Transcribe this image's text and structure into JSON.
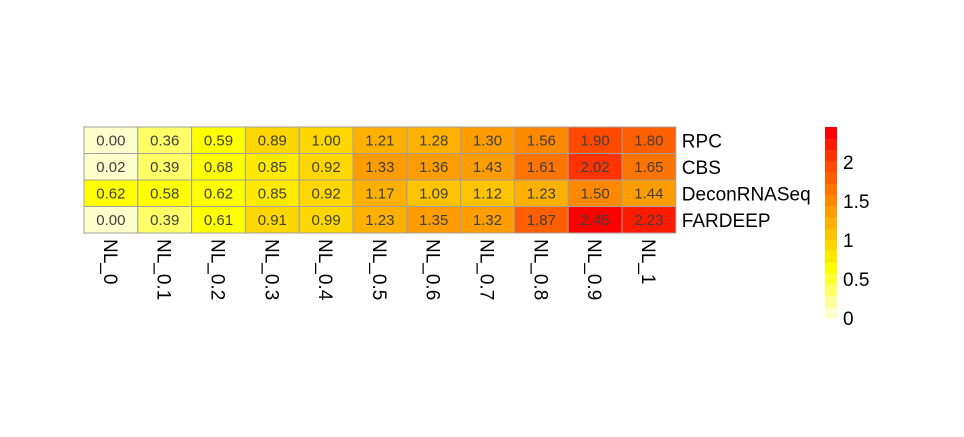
{
  "chart_data": {
    "type": "heatmap",
    "title": "",
    "xlabel": "",
    "ylabel": "",
    "rows": [
      "RPC",
      "CBS",
      "DeconRNASeq",
      "FARDEEP"
    ],
    "columns": [
      "NL_0",
      "NL_0.1",
      "NL_0.2",
      "NL_0.3",
      "NL_0.4",
      "NL_0.5",
      "NL_0.6",
      "NL_0.7",
      "NL_0.8",
      "NL_0.9",
      "NL_1"
    ],
    "values": [
      [
        0.0,
        0.36,
        0.59,
        0.89,
        1.0,
        1.21,
        1.28,
        1.3,
        1.56,
        1.9,
        1.8
      ],
      [
        0.02,
        0.39,
        0.68,
        0.85,
        0.92,
        1.33,
        1.36,
        1.43,
        1.61,
        2.02,
        1.65
      ],
      [
        0.62,
        0.58,
        0.62,
        0.85,
        0.92,
        1.17,
        1.09,
        1.12,
        1.23,
        1.5,
        1.44
      ],
      [
        0.0,
        0.39,
        0.61,
        0.91,
        0.99,
        1.23,
        1.35,
        1.32,
        1.87,
        2.45,
        2.23
      ]
    ],
    "cell_labels": [
      [
        "0.00",
        "0.36",
        "0.59",
        "0.89",
        "1.00",
        "1.21",
        "1.28",
        "1.30",
        "1.56",
        "1.90",
        "1.80"
      ],
      [
        "0.02",
        "0.39",
        "0.68",
        "0.85",
        "0.92",
        "1.33",
        "1.36",
        "1.43",
        "1.61",
        "2.02",
        "1.65"
      ],
      [
        "0.62",
        "0.58",
        "0.62",
        "0.85",
        "0.92",
        "1.17",
        "1.09",
        "1.12",
        "1.23",
        "1.50",
        "1.44"
      ],
      [
        "0.00",
        "0.39",
        "0.61",
        "0.91",
        "0.99",
        "1.23",
        "1.35",
        "1.32",
        "1.87",
        "2.45",
        "2.23"
      ]
    ],
    "legend": {
      "placement": "right",
      "ticks": [
        0,
        0.5,
        1,
        1.5,
        2
      ],
      "tick_labels": [
        "0",
        "0.5",
        "1",
        "1.5",
        "2"
      ],
      "range": [
        0,
        2.45
      ]
    },
    "colors": {
      "palette": [
        "#FFFFCC",
        "#FFFF99",
        "#FFFF66",
        "#FFFF33",
        "#FFFF00",
        "#FFEA00",
        "#FFD700",
        "#FFC300",
        "#FFB000",
        "#FF9C00",
        "#FF8800",
        "#FF7400",
        "#FF5F00",
        "#FF4A00",
        "#FF3300",
        "#FF1A00",
        "#FF0000"
      ],
      "cell_border": "#A0A0A0",
      "cell_text": "#404040"
    }
  }
}
